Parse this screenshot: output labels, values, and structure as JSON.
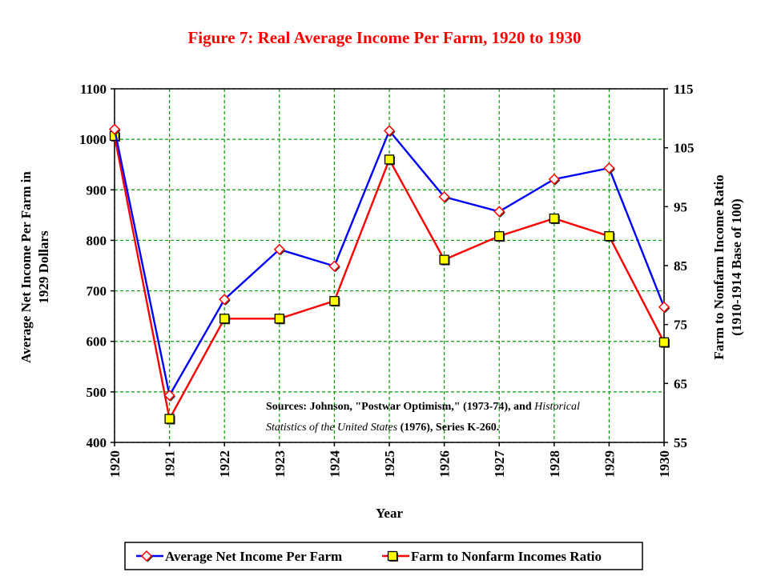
{
  "chart_data": {
    "type": "line",
    "title": "Figure 7: Real Average Income Per Farm, 1920 to 1930",
    "xlabel": "Year",
    "ylabel_left_line1": "Average Net Income Per Farm in",
    "ylabel_left_line2": "1929 Dollars",
    "ylabel_right_line1": "Farm to Nonfarm Income Ratio",
    "ylabel_right_line2": "(1910-1914 Base of 100)",
    "x": [
      "1920",
      "1921",
      "1922",
      "1923",
      "1924",
      "1925",
      "1926",
      "1927",
      "1928",
      "1929",
      "1930"
    ],
    "ylim_left": [
      400,
      1100
    ],
    "yticks_left": [
      400,
      500,
      600,
      700,
      800,
      900,
      1000,
      1100
    ],
    "ylim_right": [
      55,
      115
    ],
    "yticks_right": [
      55,
      65,
      75,
      85,
      95,
      105,
      115
    ],
    "grid": true,
    "legend_position": "bottom",
    "series": [
      {
        "name": "Average Net Income Per Farm",
        "axis": "left",
        "color": "#0000ff",
        "marker": "diamond",
        "marker_color": "#ff0000",
        "values": [
          1020,
          493,
          683,
          782,
          749,
          1017,
          886,
          857,
          921,
          943,
          668
        ]
      },
      {
        "name": "Farm to Nonfarm Incomes Ratio",
        "axis": "right",
        "color": "#ff0000",
        "marker": "square",
        "marker_color": "#ffff00",
        "values": [
          107,
          59,
          76,
          76,
          79,
          103,
          86,
          90,
          93,
          90,
          72
        ]
      }
    ],
    "annotation": {
      "line1_bold": "Sources: Johnson, \"Postwar Optimism,\" (1973-74), and ",
      "line1_italic": "Historical",
      "line2_italic": "Statistics of the United States",
      "line2_bold": " (1976), Series K-260."
    },
    "colors": {
      "title": "#ff0000",
      "grid": "#00a000"
    }
  }
}
